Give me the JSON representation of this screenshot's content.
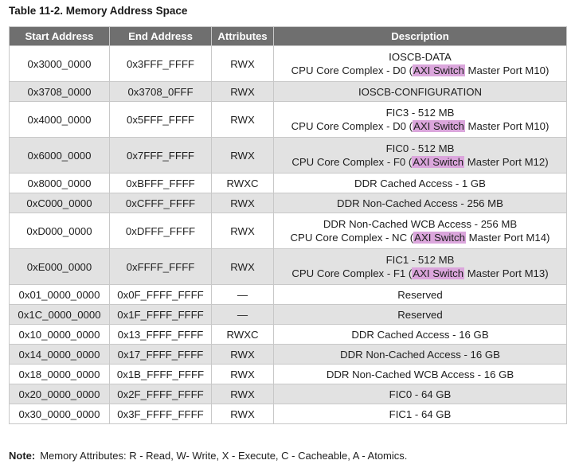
{
  "title": "Table 11-2. Memory Address Space",
  "headers": [
    "Start Address",
    "End Address",
    "Attributes",
    "Description"
  ],
  "rows": [
    {
      "start": "0x3000_0000",
      "end": "0x3FFF_FFFF",
      "attr": "RWX",
      "desc": [
        {
          "text": "IOSCB-DATA"
        },
        {
          "pre": "CPU Core Complex - D0 (",
          "hl": "AXI Switch",
          "post": " Master Port M10)"
        }
      ]
    },
    {
      "start": "0x3708_0000",
      "end": "0x3708_0FFF",
      "attr": "RWX",
      "desc": [
        {
          "text": "IOSCB-CONFIGURATION"
        }
      ]
    },
    {
      "start": "0x4000_0000",
      "end": "0x5FFF_FFFF",
      "attr": "RWX",
      "desc": [
        {
          "text": "FIC3 - 512 MB"
        },
        {
          "pre": "CPU Core Complex - D0 (",
          "hl": "AXI Switch",
          "post": " Master Port M10)"
        }
      ]
    },
    {
      "start": "0x6000_0000",
      "end": "0x7FFF_FFFF",
      "attr": "RWX",
      "desc": [
        {
          "text": "FIC0 - 512 MB"
        },
        {
          "pre": "CPU Core Complex - F0 (",
          "hl": "AXI Switch",
          "post": " Master Port M12)"
        }
      ]
    },
    {
      "start": "0x8000_0000",
      "end": "0xBFFF_FFFF",
      "attr": "RWXC",
      "desc": [
        {
          "text": "DDR Cached Access - 1 GB"
        }
      ]
    },
    {
      "start": "0xC000_0000",
      "end": "0xCFFF_FFFF",
      "attr": "RWX",
      "desc": [
        {
          "text": "DDR Non-Cached Access - 256 MB"
        }
      ]
    },
    {
      "start": "0xD000_0000",
      "end": "0xDFFF_FFFF",
      "attr": "RWX",
      "desc": [
        {
          "text": "DDR Non-Cached WCB Access - 256 MB"
        },
        {
          "pre": "CPU Core Complex - NC (",
          "hl": "AXI Switch",
          "post": " Master Port M14)"
        }
      ]
    },
    {
      "start": "0xE000_0000",
      "end": "0xFFFF_FFFF",
      "attr": "RWX",
      "desc": [
        {
          "text": "FIC1 - 512 MB"
        },
        {
          "pre": "CPU Core Complex - F1 (",
          "hl": "AXI Switch",
          "post": " Master Port M13)"
        }
      ]
    },
    {
      "start": "0x01_0000_0000",
      "end": "0x0F_FFFF_FFFF",
      "attr": "—",
      "desc": [
        {
          "text": "Reserved"
        }
      ]
    },
    {
      "start": "0x1C_0000_0000",
      "end": "0x1F_FFFF_FFFF",
      "attr": "—",
      "desc": [
        {
          "text": "Reserved"
        }
      ]
    },
    {
      "start": "0x10_0000_0000",
      "end": "0x13_FFFF_FFFF",
      "attr": "RWXC",
      "desc": [
        {
          "text": "DDR Cached Access - 16 GB"
        }
      ]
    },
    {
      "start": "0x14_0000_0000",
      "end": "0x17_FFFF_FFFF",
      "attr": "RWX",
      "desc": [
        {
          "text": "DDR Non-Cached Access - 16 GB"
        }
      ]
    },
    {
      "start": "0x18_0000_0000",
      "end": "0x1B_FFFF_FFFF",
      "attr": "RWX",
      "desc": [
        {
          "text": "DDR Non-Cached WCB Access - 16 GB"
        }
      ]
    },
    {
      "start": "0x20_0000_0000",
      "end": "0x2F_FFFF_FFFF",
      "attr": "RWX",
      "desc": [
        {
          "text": "FIC0 - 64 GB"
        }
      ]
    },
    {
      "start": "0x30_0000_0000",
      "end": "0x3F_FFFF_FFFF",
      "attr": "RWX",
      "desc": [
        {
          "text": "FIC1 - 64 GB"
        }
      ]
    }
  ],
  "note": {
    "label": "Note:",
    "text": "Memory Attributes: R - Read, W- Write, X - Execute, C - Cacheable, A - Atomics."
  },
  "colors": {
    "header_bg": "#6f6f6f",
    "row_alt_bg": "#e2e2e2",
    "highlight": "#dba6dc"
  }
}
